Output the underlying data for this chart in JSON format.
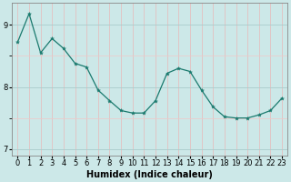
{
  "x": [
    0,
    1,
    2,
    3,
    4,
    5,
    6,
    7,
    8,
    9,
    10,
    11,
    12,
    13,
    14,
    15,
    16,
    17,
    18,
    19,
    20,
    21,
    22,
    23
  ],
  "y": [
    8.72,
    9.18,
    8.55,
    8.78,
    8.62,
    8.38,
    8.32,
    7.95,
    7.78,
    7.62,
    7.58,
    7.58,
    7.78,
    8.22,
    8.3,
    8.25,
    7.95,
    7.68,
    7.52,
    7.5,
    7.5,
    7.55,
    7.62,
    7.82
  ],
  "line_color": "#1a7a6e",
  "marker": "*",
  "marker_size": 3,
  "bg_color": "#cce8e8",
  "grid_color_major": "#aacccc",
  "grid_color_minor": "#f0c8c8",
  "xlabel": "Humidex (Indice chaleur)",
  "ylim": [
    6.9,
    9.35
  ],
  "xlim": [
    -0.5,
    23.5
  ],
  "yticks": [
    7,
    8,
    9
  ],
  "xtick_labels": [
    "0",
    "1",
    "2",
    "3",
    "4",
    "5",
    "6",
    "7",
    "8",
    "9",
    "10",
    "11",
    "12",
    "13",
    "14",
    "15",
    "16",
    "17",
    "18",
    "19",
    "20",
    "21",
    "22",
    "23"
  ],
  "xlabel_fontsize": 7,
  "tick_fontsize": 6
}
